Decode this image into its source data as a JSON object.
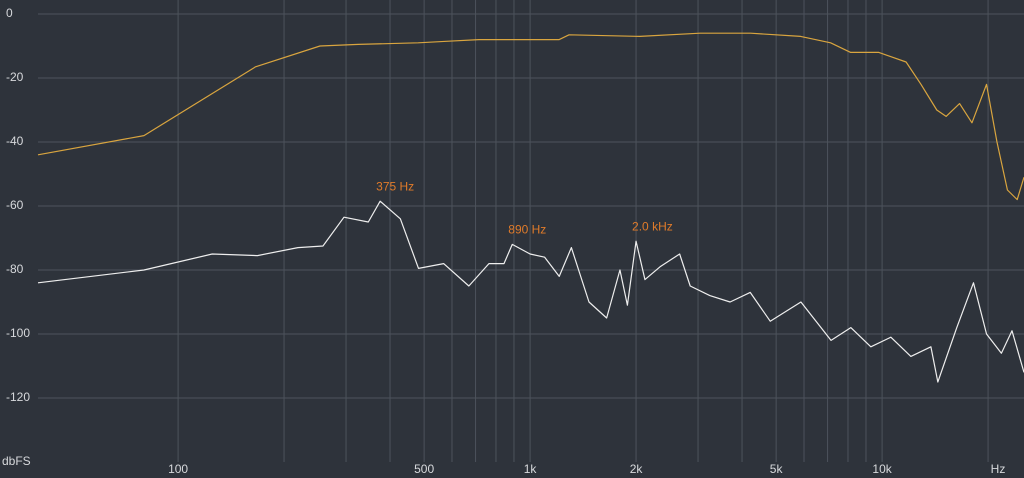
{
  "chart_data": {
    "type": "line",
    "x_log_scale": true,
    "grid": true,
    "background": "#2e333b",
    "grid_color": "#4d535c",
    "xlabel": "Hz",
    "ylabel": "dbFS",
    "xlim": [
      40,
      25300
    ],
    "ylim": [
      -140,
      0
    ],
    "yticks": [
      0,
      -20,
      -40,
      -60,
      -80,
      -100,
      -120
    ],
    "xticks": [
      100,
      500,
      {
        "value": 1000,
        "label": "1k"
      },
      {
        "value": 2000,
        "label": "2k"
      },
      {
        "value": 5000,
        "label": "5k"
      },
      {
        "value": 10000,
        "label": "10k"
      }
    ],
    "xgrid_minor": [
      200,
      300,
      400,
      600,
      700,
      800,
      900,
      3000,
      4000,
      6000,
      7000,
      8000,
      9000,
      20000
    ],
    "series": [
      {
        "color": "#d9a53f",
        "x": [
          40,
          80,
          166,
          253,
          325,
          481,
          587,
          715,
          1210,
          1290,
          2050,
          3040,
          4230,
          5870,
          7140,
          8140,
          9790,
          11700,
          12900,
          14300,
          15200,
          16600,
          18000,
          19800,
          21200,
          22700,
          24200,
          25300
        ],
        "values": [
          -44,
          -38,
          -16.5,
          -10,
          -9.5,
          -9,
          -8.5,
          -8,
          -8,
          -6.5,
          -7,
          -6,
          -6,
          -7,
          -9,
          -12,
          -12,
          -15,
          -22,
          -30,
          -32,
          -28,
          -34,
          -22,
          -40,
          -55,
          -58,
          -51
        ]
      },
      {
        "color": "#eeeeee",
        "x": [
          40,
          80,
          125,
          168,
          219,
          258,
          296,
          347,
          375,
          428,
          482,
          568,
          670,
          764,
          843,
          890,
          1000,
          1100,
          1210,
          1310,
          1470,
          1650,
          1800,
          1890,
          2000,
          2120,
          2340,
          2660,
          2850,
          3240,
          3700,
          4220,
          4810,
          5880,
          7160,
          8150,
          9290,
          10590,
          12070,
          13760,
          14400,
          16300,
          18180,
          19800,
          21820,
          23390,
          25300
        ],
        "values": [
          -84,
          -80,
          -75,
          -75.5,
          -73,
          -72.5,
          -63.5,
          -65,
          -58.5,
          -64,
          -79.5,
          -78,
          -85,
          -78,
          -78,
          -72,
          -75,
          -76,
          -82,
          -73,
          -90,
          -95,
          -80,
          -91,
          -71,
          -83,
          -79,
          -75,
          -85,
          -88,
          -90,
          -87,
          -96,
          -90,
          -102,
          -98,
          -104,
          -101,
          -107,
          -104,
          -115,
          -98,
          -84,
          -100,
          -106,
          -99,
          -112
        ]
      }
    ],
    "annotations": [
      {
        "text": "375 Hz",
        "x": 375,
        "y": -58.5
      },
      {
        "text": "890 Hz",
        "x": 890,
        "y": -72
      },
      {
        "text": "2.0 kHz",
        "x": 2000,
        "y": -71
      }
    ],
    "annotation_color": "#e07b2a"
  }
}
